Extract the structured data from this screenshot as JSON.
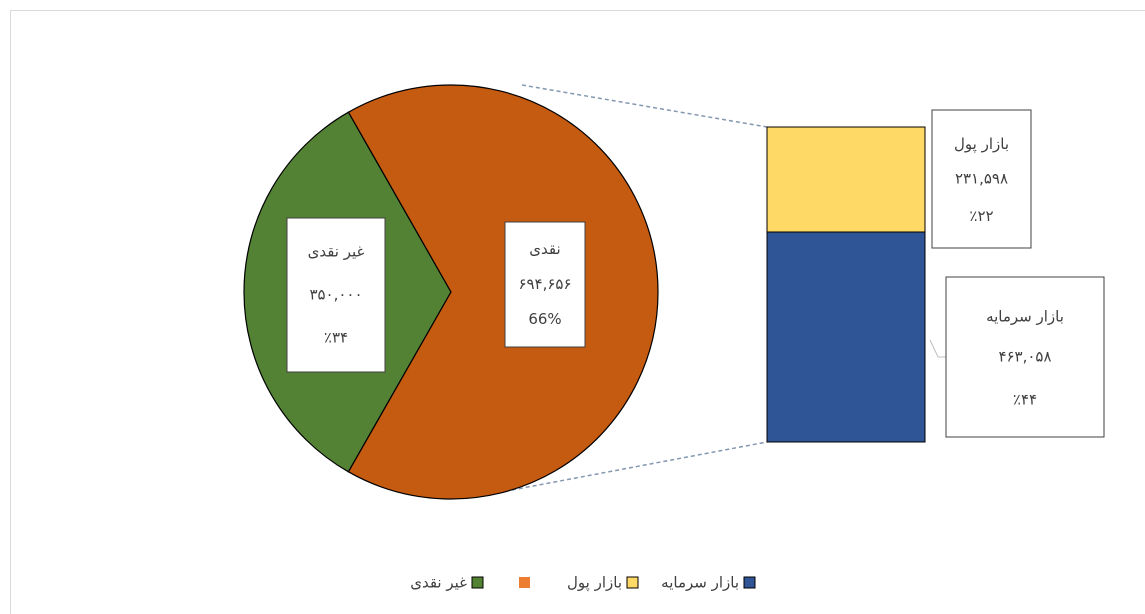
{
  "chart_data": {
    "type": "bar-of-pie",
    "pie": {
      "categories": [
        "غیر نقدی",
        "نقدی"
      ],
      "values": [
        350000,
        694656
      ],
      "value_labels": [
        "۳۵۰,۰۰۰",
        "۶۹۴,۶۵۶"
      ],
      "percents": [
        34,
        66
      ],
      "percent_labels": [
        "٪۳۴",
        "66%"
      ],
      "colors": [
        "#548235",
        "#c55a11"
      ]
    },
    "bar": {
      "categories": [
        "بازار پول",
        "بازار سرمایه"
      ],
      "values": [
        231598,
        463058
      ],
      "value_labels": [
        "۲۳۱,۵۹۸",
        "۴۶۳,۰۵۸"
      ],
      "percents": [
        22,
        44
      ],
      "percent_labels": [
        "٪۲۲",
        "٪۴۴"
      ],
      "colors": [
        "#ffd966",
        "#2f5597"
      ]
    },
    "legend": [
      {
        "name": "غیر نقدی",
        "color": "#548235"
      },
      {
        "name": null,
        "color": "#ed7d31"
      },
      {
        "name": "بازار پول",
        "color": "#ffd966"
      },
      {
        "name": "بازار سرمایه",
        "color": "#2f5597"
      }
    ]
  }
}
